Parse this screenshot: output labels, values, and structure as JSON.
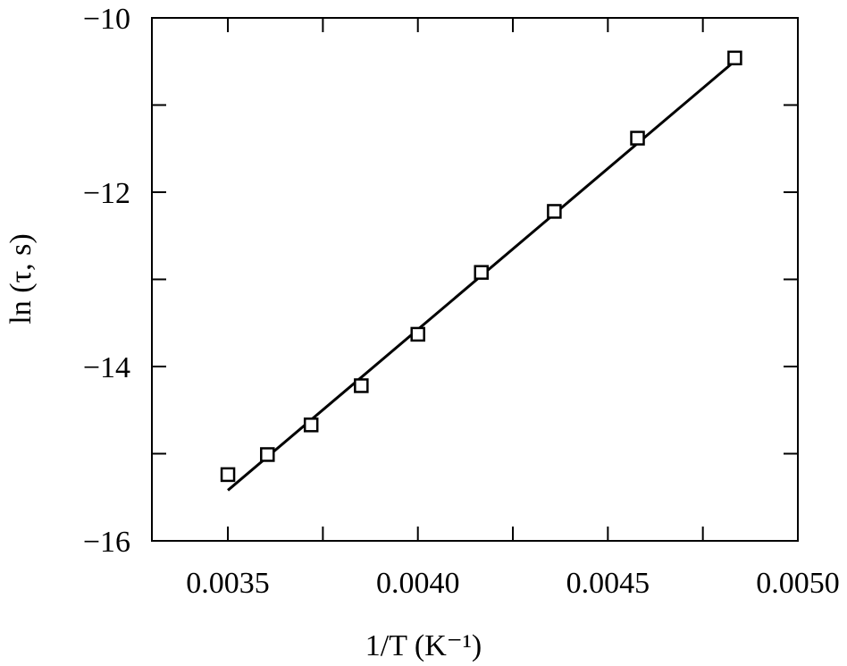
{
  "chart_data": {
    "type": "scatter",
    "x_label": "1/T (K⁻¹)",
    "y_label": "ln (τ, s)",
    "xlim": [
      0.0033,
      0.005
    ],
    "ylim": [
      -16,
      -10
    ],
    "xticks": [
      {
        "value": 0.0035,
        "label": "0.0035"
      },
      {
        "value": 0.004,
        "label": "0.0040"
      },
      {
        "value": 0.0045,
        "label": "0.0045"
      },
      {
        "value": 0.005,
        "label": "0.0050"
      }
    ],
    "xminorticks": [
      0.00375,
      0.00425,
      0.00475
    ],
    "yticks": [
      {
        "value": -10,
        "label": "−10"
      },
      {
        "value": -12,
        "label": "−12"
      },
      {
        "value": -14,
        "label": "−14"
      },
      {
        "value": -16,
        "label": "−16"
      }
    ],
    "yminorticks": [
      -11,
      -13,
      -15
    ],
    "color": "#000000",
    "points": {
      "x": [
        0.0035,
        0.003604,
        0.003719,
        0.003851,
        0.004,
        0.004167,
        0.004359,
        0.004578,
        0.004834
      ],
      "y": [
        -15.24,
        -15.01,
        -14.67,
        -14.22,
        -13.63,
        -12.92,
        -12.22,
        -11.38,
        -10.46
      ]
    },
    "fit": {
      "x": [
        0.0035,
        0.00483
      ],
      "y": [
        -15.42,
        -10.51
      ]
    }
  }
}
